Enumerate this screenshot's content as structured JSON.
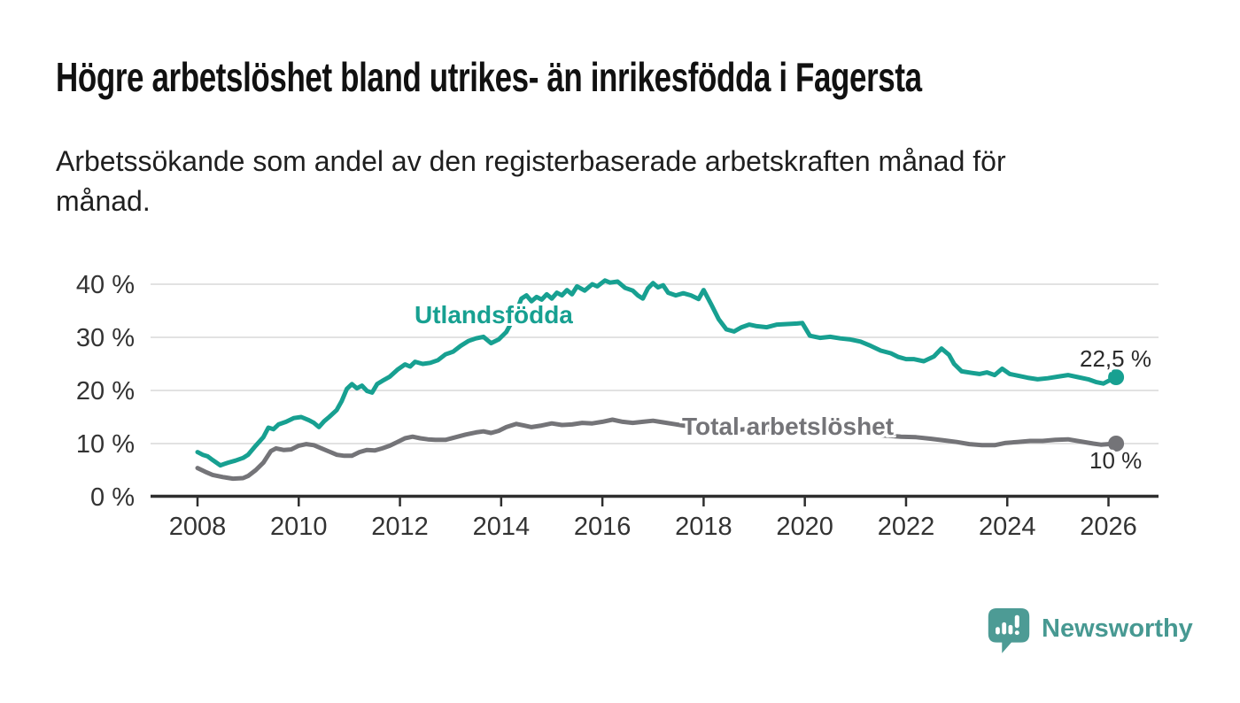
{
  "header": {
    "title": "Högre arbetslöshet bland utrikes- än inrikesfödda i Fagersta",
    "subtitle_lines": [
      "Arbetssökande som andel av den registerbaserade arbetskraften månad för",
      "månad."
    ]
  },
  "colors": {
    "teal_line": "#17a091",
    "gray_line": "#747478",
    "gridline": "#d9d9d9",
    "axis": "#2e2e2e",
    "tick_label": "#333333",
    "title_text": "#111111",
    "subtitle_text": "#1f1f1f",
    "end_label_text": "#2b2b2b",
    "logo_teal": "#4d9b95"
  },
  "footer": {
    "brand": "Newsworthy",
    "logo_icon": "newsworthy-chart-bubble-icon"
  },
  "chart_data": {
    "type": "line",
    "title": "",
    "xlabel": "",
    "ylabel": "",
    "grid": "horizontal",
    "legend_position": "inline-labels",
    "x_range": [
      2007.05,
      2027.0
    ],
    "ylim": [
      0,
      42
    ],
    "x_ticks": [
      2008,
      2010,
      2012,
      2014,
      2016,
      2018,
      2020,
      2022,
      2024,
      2026
    ],
    "x_tick_labels": [
      "2008",
      "2010",
      "2012",
      "2014",
      "2016",
      "2018",
      "2020",
      "2022",
      "2024",
      "2026"
    ],
    "y_ticks": [
      0,
      10,
      20,
      30,
      40
    ],
    "y_tick_labels": [
      "0 %",
      "10 %",
      "20 %",
      "30 %",
      "40 %"
    ],
    "series": [
      {
        "name": "Utlandsfödda",
        "color": "#17a091",
        "end_label": "22,5 %",
        "end_value": 22.5,
        "points": [
          [
            2008.0,
            8.4
          ],
          [
            2008.1,
            7.9
          ],
          [
            2008.2,
            7.6
          ],
          [
            2008.3,
            6.9
          ],
          [
            2008.45,
            5.9
          ],
          [
            2008.6,
            6.4
          ],
          [
            2008.75,
            6.8
          ],
          [
            2008.9,
            7.3
          ],
          [
            2009.0,
            7.9
          ],
          [
            2009.15,
            9.6
          ],
          [
            2009.3,
            11.2
          ],
          [
            2009.4,
            13.0
          ],
          [
            2009.5,
            12.7
          ],
          [
            2009.6,
            13.6
          ],
          [
            2009.75,
            14.1
          ],
          [
            2009.9,
            14.8
          ],
          [
            2010.05,
            15.0
          ],
          [
            2010.2,
            14.4
          ],
          [
            2010.3,
            13.9
          ],
          [
            2010.4,
            13.1
          ],
          [
            2010.5,
            14.2
          ],
          [
            2010.6,
            15.0
          ],
          [
            2010.75,
            16.3
          ],
          [
            2010.85,
            18.0
          ],
          [
            2010.95,
            20.3
          ],
          [
            2011.05,
            21.2
          ],
          [
            2011.15,
            20.4
          ],
          [
            2011.25,
            20.9
          ],
          [
            2011.35,
            19.9
          ],
          [
            2011.45,
            19.6
          ],
          [
            2011.55,
            21.2
          ],
          [
            2011.65,
            21.8
          ],
          [
            2011.8,
            22.6
          ],
          [
            2011.95,
            23.9
          ],
          [
            2012.1,
            24.9
          ],
          [
            2012.2,
            24.5
          ],
          [
            2012.3,
            25.4
          ],
          [
            2012.45,
            25.0
          ],
          [
            2012.6,
            25.2
          ],
          [
            2012.75,
            25.7
          ],
          [
            2012.9,
            26.8
          ],
          [
            2013.05,
            27.3
          ],
          [
            2013.2,
            28.4
          ],
          [
            2013.35,
            29.3
          ],
          [
            2013.5,
            29.8
          ],
          [
            2013.65,
            30.1
          ],
          [
            2013.8,
            28.9
          ],
          [
            2013.95,
            29.6
          ],
          [
            2014.1,
            31.0
          ],
          [
            2014.25,
            33.6
          ],
          [
            2014.4,
            37.3
          ],
          [
            2014.5,
            37.9
          ],
          [
            2014.6,
            36.8
          ],
          [
            2014.7,
            37.6
          ],
          [
            2014.8,
            37.1
          ],
          [
            2014.9,
            38.1
          ],
          [
            2015.0,
            37.3
          ],
          [
            2015.1,
            38.4
          ],
          [
            2015.2,
            37.9
          ],
          [
            2015.3,
            38.9
          ],
          [
            2015.4,
            38.1
          ],
          [
            2015.5,
            39.6
          ],
          [
            2015.65,
            38.8
          ],
          [
            2015.8,
            40.0
          ],
          [
            2015.9,
            39.6
          ],
          [
            2016.05,
            40.7
          ],
          [
            2016.15,
            40.3
          ],
          [
            2016.3,
            40.5
          ],
          [
            2016.45,
            39.3
          ],
          [
            2016.6,
            38.8
          ],
          [
            2016.7,
            37.9
          ],
          [
            2016.8,
            37.3
          ],
          [
            2016.9,
            39.2
          ],
          [
            2017.0,
            40.2
          ],
          [
            2017.1,
            39.4
          ],
          [
            2017.2,
            39.8
          ],
          [
            2017.3,
            38.4
          ],
          [
            2017.45,
            37.9
          ],
          [
            2017.6,
            38.3
          ],
          [
            2017.75,
            37.9
          ],
          [
            2017.9,
            37.2
          ],
          [
            2018.0,
            38.9
          ],
          [
            2018.15,
            36.2
          ],
          [
            2018.3,
            33.4
          ],
          [
            2018.45,
            31.5
          ],
          [
            2018.6,
            31.1
          ],
          [
            2018.75,
            31.9
          ],
          [
            2018.9,
            32.4
          ],
          [
            2019.05,
            32.1
          ],
          [
            2019.25,
            31.9
          ],
          [
            2019.45,
            32.4
          ],
          [
            2019.65,
            32.5
          ],
          [
            2019.85,
            32.6
          ],
          [
            2019.95,
            32.7
          ],
          [
            2020.1,
            30.3
          ],
          [
            2020.3,
            29.9
          ],
          [
            2020.5,
            30.1
          ],
          [
            2020.7,
            29.8
          ],
          [
            2020.9,
            29.6
          ],
          [
            2021.1,
            29.2
          ],
          [
            2021.3,
            28.4
          ],
          [
            2021.5,
            27.5
          ],
          [
            2021.7,
            27.0
          ],
          [
            2021.85,
            26.3
          ],
          [
            2022.0,
            25.9
          ],
          [
            2022.15,
            25.9
          ],
          [
            2022.35,
            25.5
          ],
          [
            2022.55,
            26.4
          ],
          [
            2022.7,
            27.9
          ],
          [
            2022.85,
            26.7
          ],
          [
            2022.95,
            25.0
          ],
          [
            2023.1,
            23.6
          ],
          [
            2023.3,
            23.3
          ],
          [
            2023.45,
            23.1
          ],
          [
            2023.6,
            23.4
          ],
          [
            2023.75,
            22.9
          ],
          [
            2023.9,
            24.1
          ],
          [
            2024.05,
            23.1
          ],
          [
            2024.2,
            22.8
          ],
          [
            2024.4,
            22.4
          ],
          [
            2024.6,
            22.1
          ],
          [
            2024.8,
            22.3
          ],
          [
            2025.0,
            22.6
          ],
          [
            2025.2,
            22.9
          ],
          [
            2025.4,
            22.5
          ],
          [
            2025.6,
            22.1
          ],
          [
            2025.75,
            21.6
          ],
          [
            2025.9,
            21.3
          ],
          [
            2026.0,
            21.8
          ],
          [
            2026.15,
            22.5
          ]
        ]
      },
      {
        "name": "Total arbetslöshet",
        "color": "#747478",
        "end_label": "10 %",
        "end_value": 10,
        "points": [
          [
            2008.0,
            5.4
          ],
          [
            2008.15,
            4.7
          ],
          [
            2008.3,
            4.1
          ],
          [
            2008.5,
            3.7
          ],
          [
            2008.7,
            3.4
          ],
          [
            2008.9,
            3.5
          ],
          [
            2009.0,
            3.9
          ],
          [
            2009.15,
            5.0
          ],
          [
            2009.3,
            6.4
          ],
          [
            2009.45,
            8.6
          ],
          [
            2009.55,
            9.1
          ],
          [
            2009.7,
            8.8
          ],
          [
            2009.85,
            8.9
          ],
          [
            2010.0,
            9.6
          ],
          [
            2010.15,
            9.9
          ],
          [
            2010.3,
            9.7
          ],
          [
            2010.45,
            9.1
          ],
          [
            2010.6,
            8.5
          ],
          [
            2010.75,
            7.9
          ],
          [
            2010.9,
            7.7
          ],
          [
            2011.05,
            7.7
          ],
          [
            2011.2,
            8.4
          ],
          [
            2011.35,
            8.8
          ],
          [
            2011.5,
            8.7
          ],
          [
            2011.65,
            9.1
          ],
          [
            2011.8,
            9.6
          ],
          [
            2011.95,
            10.3
          ],
          [
            2012.1,
            11.0
          ],
          [
            2012.25,
            11.3
          ],
          [
            2012.4,
            11.0
          ],
          [
            2012.55,
            10.8
          ],
          [
            2012.7,
            10.7
          ],
          [
            2012.9,
            10.7
          ],
          [
            2013.1,
            11.2
          ],
          [
            2013.3,
            11.7
          ],
          [
            2013.5,
            12.1
          ],
          [
            2013.65,
            12.3
          ],
          [
            2013.8,
            12.0
          ],
          [
            2013.95,
            12.4
          ],
          [
            2014.1,
            13.1
          ],
          [
            2014.3,
            13.7
          ],
          [
            2014.45,
            13.4
          ],
          [
            2014.6,
            13.1
          ],
          [
            2014.8,
            13.4
          ],
          [
            2015.0,
            13.8
          ],
          [
            2015.2,
            13.5
          ],
          [
            2015.4,
            13.6
          ],
          [
            2015.6,
            13.9
          ],
          [
            2015.8,
            13.8
          ],
          [
            2016.0,
            14.1
          ],
          [
            2016.2,
            14.5
          ],
          [
            2016.4,
            14.1
          ],
          [
            2016.6,
            13.9
          ],
          [
            2016.8,
            14.1
          ],
          [
            2017.0,
            14.3
          ],
          [
            2017.2,
            14.0
          ],
          [
            2017.4,
            13.7
          ],
          [
            2017.6,
            13.4
          ],
          [
            2017.8,
            13.2
          ],
          [
            2018.0,
            12.9
          ],
          [
            2018.3,
            12.7
          ],
          [
            2018.6,
            12.5
          ],
          [
            2018.9,
            12.8
          ],
          [
            2019.2,
            12.7
          ],
          [
            2019.5,
            12.5
          ],
          [
            2019.8,
            12.7
          ],
          [
            2020.1,
            12.8
          ],
          [
            2020.4,
            12.5
          ],
          [
            2020.7,
            12.3
          ],
          [
            2021.0,
            12.0
          ],
          [
            2021.3,
            11.7
          ],
          [
            2021.6,
            11.5
          ],
          [
            2021.9,
            11.3
          ],
          [
            2022.2,
            11.2
          ],
          [
            2022.5,
            10.9
          ],
          [
            2022.75,
            10.6
          ],
          [
            2023.0,
            10.3
          ],
          [
            2023.25,
            9.9
          ],
          [
            2023.5,
            9.7
          ],
          [
            2023.75,
            9.7
          ],
          [
            2023.95,
            10.1
          ],
          [
            2024.2,
            10.3
          ],
          [
            2024.45,
            10.5
          ],
          [
            2024.7,
            10.5
          ],
          [
            2024.95,
            10.7
          ],
          [
            2025.2,
            10.8
          ],
          [
            2025.45,
            10.4
          ],
          [
            2025.7,
            10.0
          ],
          [
            2025.85,
            9.8
          ],
          [
            2026.0,
            9.9
          ],
          [
            2026.15,
            10.0
          ]
        ]
      }
    ]
  }
}
